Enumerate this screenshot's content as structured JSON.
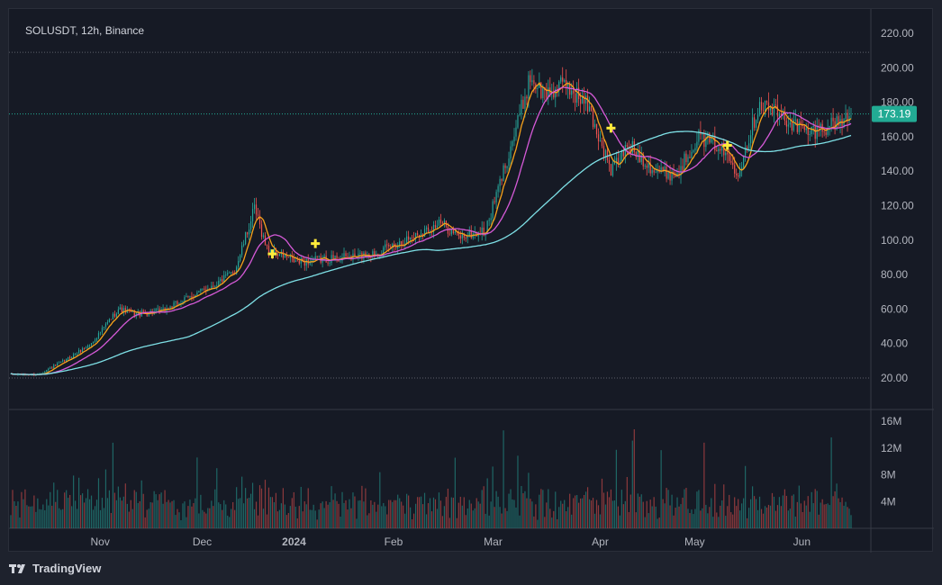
{
  "header": {
    "symbol_title": "SOLUSDT, 12h, Binance"
  },
  "brand": {
    "name": "TradingView",
    "icon": "tradingview-logo-icon"
  },
  "colors": {
    "background": "#161a25",
    "up": "#26a69a",
    "down": "#ef5350",
    "ma_orange": "#f7a21b",
    "ma_magenta": "#d65ad8",
    "ma_cyan": "#7ee0e6",
    "cross_marker": "#ffeb3b",
    "price_badge": "#22ab94"
  },
  "chart_data": {
    "type": "candlestick",
    "price_axis": {
      "ticks": [
        "220.00",
        "200.00",
        "180.00",
        "160.00",
        "140.00",
        "120.00",
        "100.00",
        "80.00",
        "60.00",
        "40.00",
        "20.00"
      ],
      "range": [
        10,
        228
      ]
    },
    "volume_axis": {
      "ticks": [
        "16M",
        "12M",
        "8M",
        "4M"
      ],
      "range": [
        0,
        16
      ]
    },
    "time_axis": {
      "labels": [
        "Nov",
        "Dec",
        "2024",
        "Feb",
        "Mar",
        "Apr",
        "May",
        "Jun"
      ]
    },
    "last_price": {
      "value": 173.19,
      "label": "173.19"
    },
    "reference_levels": [
      209,
      20
    ],
    "price_path_anchors": [
      [
        0,
        22
      ],
      [
        15,
        22
      ],
      [
        30,
        30
      ],
      [
        45,
        40
      ],
      [
        60,
        60
      ],
      [
        70,
        57
      ],
      [
        85,
        59
      ],
      [
        100,
        67
      ],
      [
        115,
        75
      ],
      [
        125,
        82
      ],
      [
        136,
        118
      ],
      [
        143,
        95
      ],
      [
        160,
        87
      ],
      [
        175,
        89
      ],
      [
        190,
        90
      ],
      [
        205,
        93
      ],
      [
        220,
        100
      ],
      [
        240,
        110
      ],
      [
        250,
        102
      ],
      [
        265,
        105
      ],
      [
        282,
        165
      ],
      [
        290,
        195
      ],
      [
        297,
        185
      ],
      [
        310,
        190
      ],
      [
        322,
        178
      ],
      [
        335,
        140
      ],
      [
        345,
        155
      ],
      [
        360,
        140
      ],
      [
        372,
        138
      ],
      [
        383,
        160
      ],
      [
        395,
        155
      ],
      [
        406,
        140
      ],
      [
        418,
        180
      ],
      [
        430,
        172
      ],
      [
        445,
        162
      ],
      [
        460,
        168
      ],
      [
        470,
        172
      ]
    ],
    "cross_markers": [
      {
        "i": 146,
        "price": 92
      },
      {
        "i": 170,
        "price": 98
      },
      {
        "i": 335,
        "price": 165
      },
      {
        "i": 400,
        "price": 155
      }
    ],
    "moving_averages": [
      {
        "name": "ma-orange",
        "color_key": "ma_orange",
        "period": 7
      },
      {
        "name": "ma-magenta",
        "color_key": "ma_magenta",
        "period": 20
      },
      {
        "name": "ma-cyan",
        "color_key": "ma_cyan",
        "period": 100
      }
    ],
    "candle_count": 470
  }
}
